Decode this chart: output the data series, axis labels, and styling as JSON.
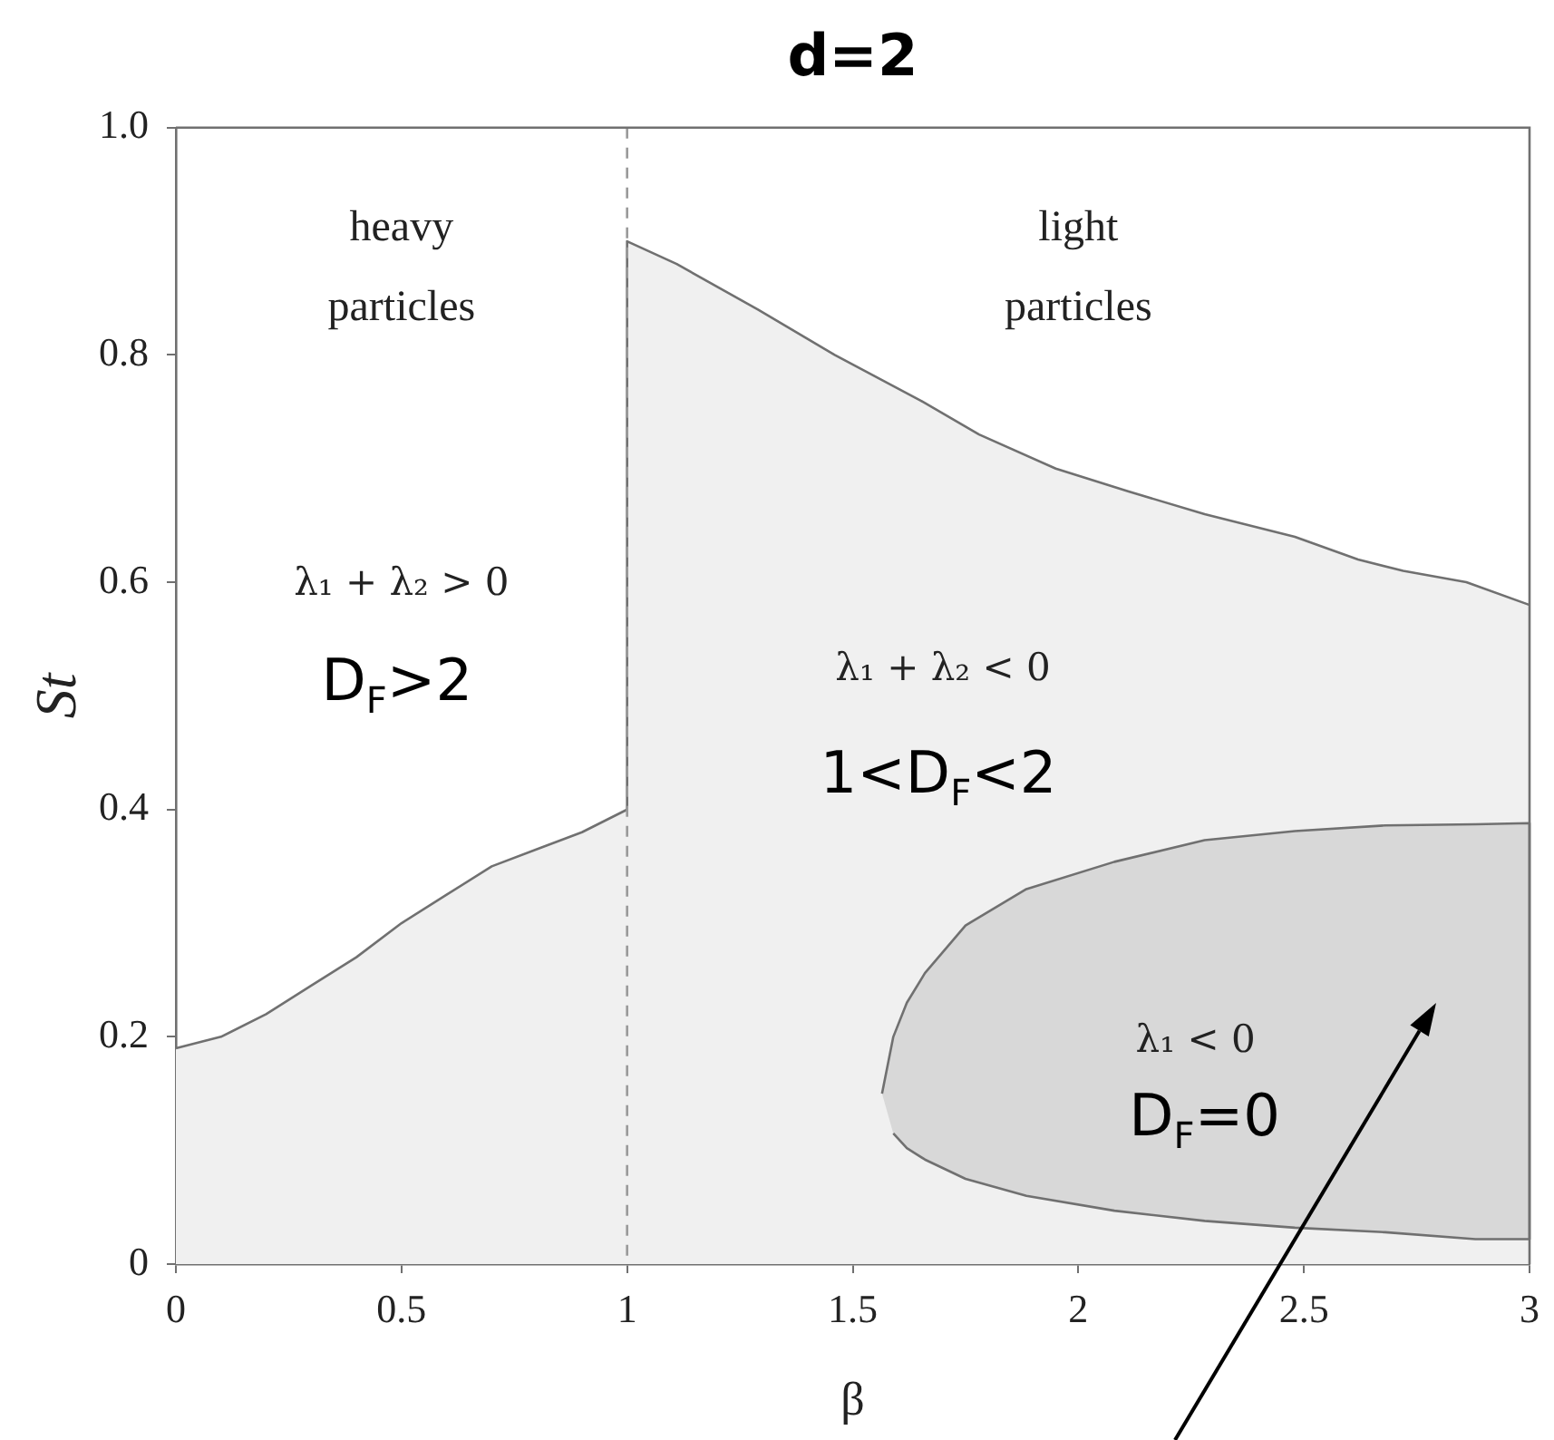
{
  "chart_data": {
    "type": "area",
    "title": "d=2",
    "xlabel": "β",
    "ylabel": "St",
    "xlim": [
      0,
      3
    ],
    "xticks": [
      0,
      0.5,
      1,
      1.5,
      2,
      2.5,
      3
    ],
    "ylim": [
      0,
      1
    ],
    "yticks": [
      0,
      0.2,
      0.4,
      0.6,
      0.8,
      {
        "value": 1,
        "label": "1.0"
      }
    ],
    "series": [
      {
        "color": "#f0f0f0",
        "x": [
          0,
          0.1,
          0.2,
          0.3,
          0.4,
          0.5,
          0.6,
          0.7,
          0.8,
          0.9,
          1,
          1,
          1.11,
          1.29,
          1.46,
          1.65,
          1.78,
          1.95,
          2.11,
          2.28,
          2.48,
          2.62,
          2.72,
          2.86,
          3
        ],
        "values": [
          0.19,
          0.2,
          0.22,
          0.245,
          0.27,
          0.3,
          0.325,
          0.35,
          0.365,
          0.38,
          0.4,
          0.9,
          0.88,
          0.84,
          0.8,
          0.76,
          0.73,
          0.7,
          0.68,
          0.66,
          0.64,
          0.62,
          0.61,
          0.6,
          0.58
        ]
      },
      {
        "color": "#d8d8d8",
        "x": [
          1.565,
          1.59,
          1.62,
          1.66,
          1.75,
          1.885,
          2.08,
          2.28,
          2.48,
          2.68,
          2.88,
          3,
          3,
          2.88,
          2.68,
          2.48,
          2.28,
          2.08,
          1.885,
          1.75,
          1.66,
          1.62,
          1.59
        ],
        "values": [
          0.15,
          0.2,
          0.23,
          0.256,
          0.298,
          0.33,
          0.354,
          0.373,
          0.381,
          0.386,
          0.387,
          0.388,
          0.022,
          0.022,
          0.028,
          0.032,
          0.038,
          0.047,
          0.06,
          0.075,
          0.092,
          0.102,
          0.115
        ]
      }
    ],
    "ref_lines": [
      {
        "axis": "x",
        "value": 1,
        "color": "#999999",
        "line_style": "dashed"
      }
    ],
    "annotations": [
      "heavy particles",
      "light particles",
      "λ₁ + λ₂ > 0",
      "D$_{F}$>2",
      "λ₁ + λ₂ < 0",
      "1<D$_{F}$<2",
      "λ₁ < 0",
      "D$_{F}$=0"
    ]
  }
}
